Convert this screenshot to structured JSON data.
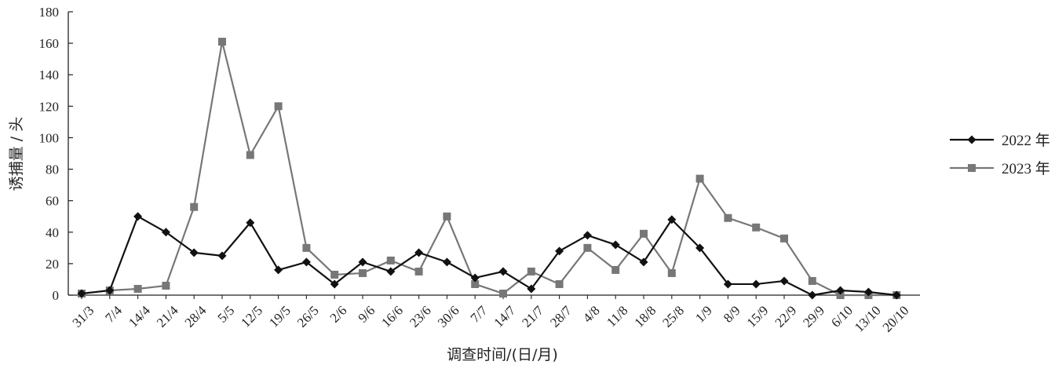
{
  "chart_data": {
    "type": "line",
    "xlabel": "调查时间/(日/月)",
    "ylabel": "诱捕量 / 头",
    "ylim": [
      0,
      180
    ],
    "yticks": [
      0,
      20,
      40,
      60,
      80,
      100,
      120,
      140,
      160,
      180
    ],
    "categories": [
      "31/3",
      "7/4",
      "14/4",
      "21/4",
      "28/4",
      "5/5",
      "12/5",
      "19/5",
      "26/5",
      "2/6",
      "9/6",
      "16/6",
      "23/6",
      "30/6",
      "7/7",
      "14/7",
      "21/7",
      "28/7",
      "4/8",
      "11/8",
      "18/8",
      "25/8",
      "1/9",
      "8/9",
      "15/9",
      "22/9",
      "29/9",
      "6/10",
      "13/10",
      "20/10"
    ],
    "series": [
      {
        "name": "2022 年",
        "color": "#111111",
        "marker": "diamond",
        "values": [
          1,
          3,
          50,
          40,
          27,
          25,
          46,
          16,
          21,
          7,
          21,
          15,
          27,
          21,
          11,
          15,
          4,
          28,
          38,
          32,
          21,
          48,
          30,
          7,
          7,
          9,
          0,
          3,
          2,
          0
        ]
      },
      {
        "name": "2023 年",
        "color": "#777777",
        "marker": "square",
        "values": [
          1,
          3,
          4,
          6,
          56,
          161,
          89,
          120,
          30,
          13,
          14,
          22,
          15,
          50,
          7,
          1,
          15,
          7,
          30,
          16,
          39,
          14,
          74,
          49,
          43,
          36,
          9,
          0,
          0,
          0
        ]
      }
    ],
    "legend": "right"
  }
}
